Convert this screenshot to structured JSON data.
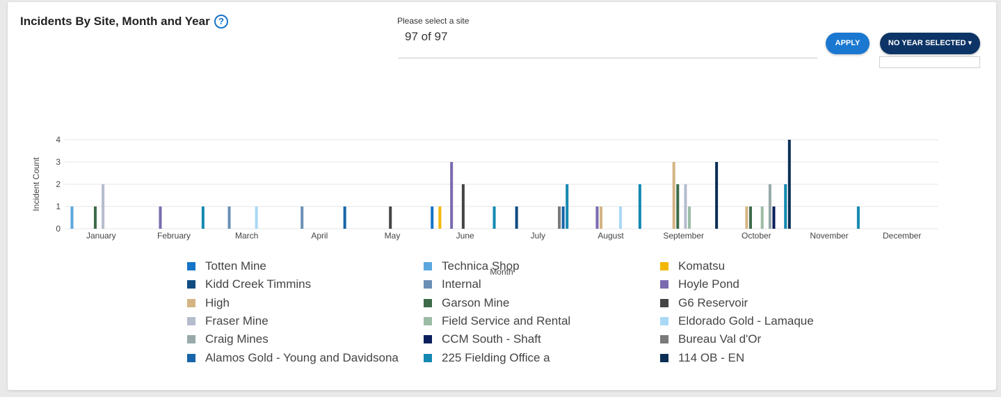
{
  "header": {
    "title": "Incidents By Site, Month and Year",
    "help_icon": "question-circle-icon",
    "site_label": "Please select a site",
    "site_value": "97 of 97",
    "apply_label": "APPLY",
    "year_label": "NO YEAR SELECTED",
    "year_caret": "▾"
  },
  "colors": {
    "apply": "#1a78d1",
    "year_button": "#0d3466",
    "help": "#1673c8"
  },
  "chart_data": {
    "type": "bar",
    "xlabel": "Month",
    "ylabel": "Incident Count",
    "ylim": [
      0,
      4
    ],
    "yticks": [
      "0",
      "1",
      "2",
      "3",
      "4"
    ],
    "grid": true,
    "legend_position": "bottom",
    "categories": [
      "January",
      "February",
      "March",
      "April",
      "May",
      "June",
      "July",
      "August",
      "September",
      "October",
      "November",
      "December"
    ],
    "series": [
      {
        "name": "Totten Mine",
        "color": "#1674c8",
        "values": [
          0,
          0,
          0,
          0,
          0,
          1,
          0,
          0,
          0,
          0,
          0,
          0
        ]
      },
      {
        "name": "Technica Shop",
        "color": "#5aa7de",
        "values": [
          1,
          0,
          0,
          0,
          0,
          0,
          0,
          0,
          0,
          0,
          0,
          0
        ]
      },
      {
        "name": "Komatsu",
        "color": "#f2b705",
        "values": [
          0,
          0,
          0,
          0,
          0,
          1,
          0,
          0,
          0,
          0,
          0,
          0
        ]
      },
      {
        "name": "Kidd Creek Timmins",
        "color": "#0f4c81",
        "values": [
          0,
          0,
          0,
          0,
          0,
          0,
          1,
          0,
          0,
          0,
          0,
          0
        ]
      },
      {
        "name": "Internal",
        "color": "#6a8fb5",
        "values": [
          0,
          0,
          1,
          1,
          0,
          0,
          0,
          0,
          0,
          0,
          0,
          0
        ]
      },
      {
        "name": "Hoyle Pond",
        "color": "#7a6bb0",
        "values": [
          0,
          1,
          0,
          0,
          0,
          3,
          0,
          1,
          0,
          0,
          0,
          0
        ]
      },
      {
        "name": "High",
        "color": "#d4b483",
        "values": [
          0,
          0,
          0,
          0,
          0,
          0,
          0,
          1,
          3,
          1,
          0,
          0
        ]
      },
      {
        "name": "Garson Mine",
        "color": "#3d6b4a",
        "values": [
          1,
          0,
          0,
          0,
          0,
          0,
          0,
          0,
          2,
          1,
          0,
          0
        ]
      },
      {
        "name": "G6 Reservoir",
        "color": "#444444",
        "values": [
          0,
          0,
          0,
          0,
          1,
          2,
          0,
          0,
          0,
          0,
          0,
          0
        ]
      },
      {
        "name": "Fraser Mine",
        "color": "#b4bccd",
        "values": [
          2,
          0,
          0,
          0,
          0,
          0,
          0,
          0,
          2,
          0,
          0,
          0
        ]
      },
      {
        "name": "Field Service and Rental",
        "color": "#9cbba4",
        "values": [
          0,
          0,
          0,
          0,
          0,
          0,
          0,
          0,
          1,
          1,
          0,
          0
        ]
      },
      {
        "name": "Eldorado Gold - Lamaque",
        "color": "#a9d8f5",
        "values": [
          0,
          0,
          1,
          0,
          0,
          0,
          0,
          1,
          0,
          0,
          0,
          0
        ]
      },
      {
        "name": "Craig Mines",
        "color": "#97a9a9",
        "values": [
          0,
          0,
          0,
          0,
          0,
          0,
          0,
          0,
          0,
          2,
          0,
          0
        ]
      },
      {
        "name": "CCM South - Shaft",
        "color": "#0a1f5c",
        "values": [
          0,
          0,
          0,
          0,
          0,
          0,
          0,
          0,
          0,
          1,
          0,
          0
        ]
      },
      {
        "name": "Bureau Val d'Or",
        "color": "#7a7a7a",
        "values": [
          0,
          0,
          0,
          0,
          0,
          0,
          1,
          0,
          0,
          0,
          0,
          0
        ]
      },
      {
        "name": "Alamos Gold - Young and Davidsona",
        "color": "#1765a8",
        "values": [
          0,
          0,
          0,
          1,
          0,
          0,
          1,
          0,
          0,
          0,
          0,
          0
        ]
      },
      {
        "name": "225 Fielding Office a",
        "color": "#1489b1",
        "values": [
          0,
          1,
          0,
          0,
          0,
          1,
          2,
          2,
          0,
          2,
          1,
          0
        ]
      },
      {
        "name": "114 OB - EN",
        "color": "#0b2f55",
        "values": [
          0,
          0,
          0,
          0,
          0,
          0,
          0,
          0,
          3,
          4,
          0,
          0
        ]
      }
    ]
  }
}
